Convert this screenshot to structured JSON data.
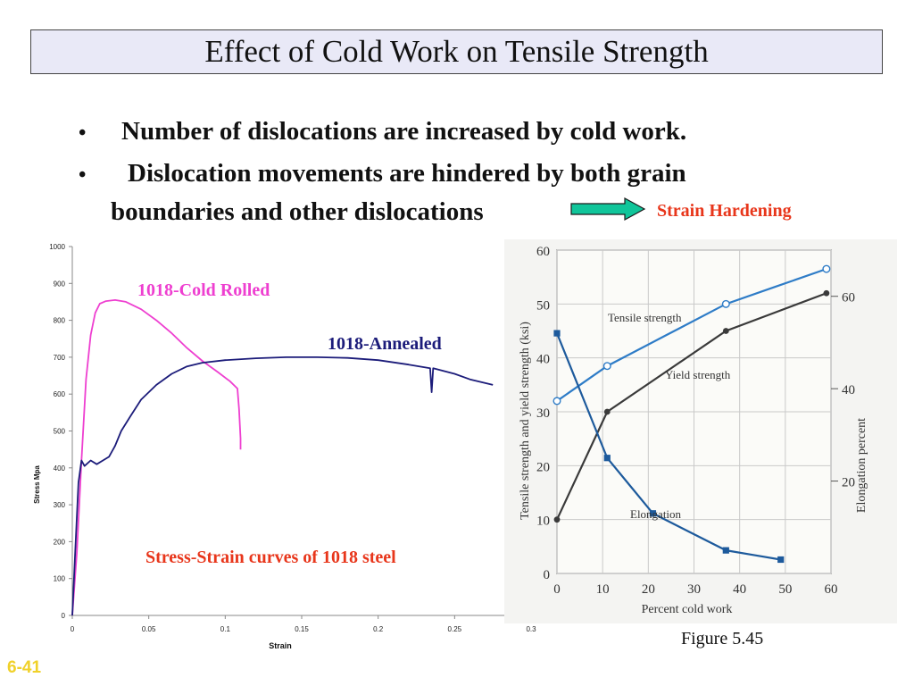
{
  "title": "Effect of Cold Work on Tensile Strength",
  "bullets": [
    "Number of dislocations are increased by cold work.",
    "Dislocation movements are hindered by both grain",
    "boundaries and other dislocations"
  ],
  "bullet_symbol": "•",
  "arrow_label": "Strain Hardening",
  "figure_caption": "Figure 5.45",
  "slide_number": "6-41",
  "colors": {
    "red": "#e8361b",
    "magenta": "#ee3fd0",
    "navy": "#1c1c7a",
    "blue": "#2e7cc7",
    "dark": "#3a3a3a",
    "steel_blue": "#1d5a9c",
    "arrow_fill": "#10c59a"
  },
  "chart_data": [
    {
      "type": "line",
      "caption": "Stress-Strain curves of 1018 steel",
      "xlabel": "Strain",
      "ylabel": "Stress Mpa",
      "xlim": [
        0,
        0.3
      ],
      "ylim": [
        0,
        1000
      ],
      "xticks": [
        "0",
        "0.05",
        "0.1",
        "0.15",
        "0.2",
        "0.25",
        "0.3"
      ],
      "yticks": [
        "0",
        "100",
        "200",
        "300",
        "400",
        "500",
        "600",
        "700",
        "800",
        "900",
        "1000"
      ],
      "grid": false,
      "series": [
        {
          "name": "1018-Cold Rolled",
          "x": [
            0,
            0.003,
            0.006,
            0.009,
            0.012,
            0.015,
            0.018,
            0.022,
            0.028,
            0.035,
            0.045,
            0.055,
            0.065,
            0.075,
            0.085,
            0.095,
            0.103,
            0.108,
            0.109,
            0.11,
            0.11
          ],
          "y": [
            0,
            170,
            420,
            640,
            760,
            820,
            845,
            852,
            855,
            850,
            830,
            800,
            765,
            725,
            690,
            660,
            635,
            615,
            560,
            480,
            450
          ]
        },
        {
          "name": "1018-Annealed",
          "x": [
            0,
            0.002,
            0.004,
            0.006,
            0.008,
            0.012,
            0.016,
            0.02,
            0.024,
            0.028,
            0.032,
            0.038,
            0.045,
            0.055,
            0.065,
            0.075,
            0.085,
            0.1,
            0.12,
            0.14,
            0.16,
            0.18,
            0.2,
            0.22,
            0.234,
            0.235,
            0.236,
            0.25,
            0.26,
            0.275
          ],
          "y": [
            0,
            180,
            360,
            420,
            405,
            420,
            410,
            420,
            430,
            460,
            500,
            540,
            585,
            625,
            655,
            675,
            685,
            692,
            697,
            700,
            700,
            698,
            692,
            680,
            670,
            605,
            670,
            655,
            640,
            625
          ]
        }
      ]
    },
    {
      "type": "line",
      "xlabel": "Percent cold work",
      "ylabel_left": "Tensile strength and yield strength (ksi)",
      "ylabel_right": "Elongation percent",
      "xlim": [
        0,
        60
      ],
      "ylim": [
        0,
        60
      ],
      "ylim_right": [
        0,
        70
      ],
      "xticks": [
        "0",
        "10",
        "20",
        "30",
        "40",
        "50",
        "60"
      ],
      "yticks_left": [
        "0",
        "10",
        "20",
        "30",
        "40",
        "50",
        "60"
      ],
      "yticks_right": [
        "20",
        "40",
        "60"
      ],
      "grid": true,
      "series": [
        {
          "name": "Tensile strength",
          "x": [
            0,
            11,
            37,
            59
          ],
          "y": [
            32,
            38.5,
            50,
            56.5
          ],
          "marker": "open-circle"
        },
        {
          "name": "Yield strength",
          "x": [
            0,
            11,
            37,
            59
          ],
          "y": [
            10,
            30,
            45,
            52
          ],
          "marker": "filled-circle"
        },
        {
          "name": "Elongation",
          "axis": "right",
          "x": [
            0,
            11,
            21,
            37,
            49
          ],
          "y": [
            52,
            25,
            13,
            5,
            3
          ],
          "marker": "filled-square"
        }
      ]
    }
  ]
}
